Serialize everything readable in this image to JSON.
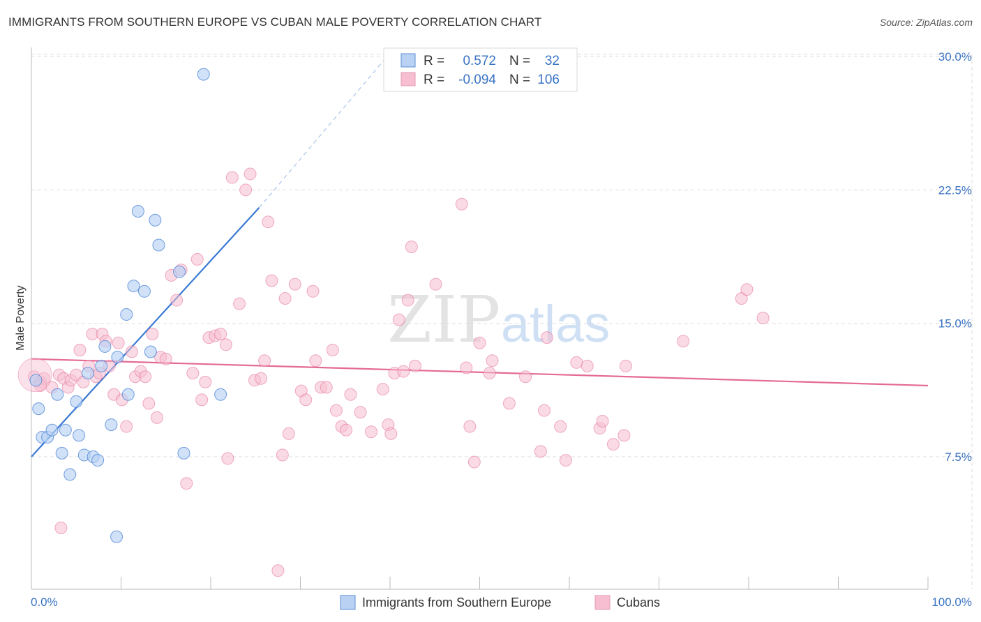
{
  "title": "IMMIGRANTS FROM SOUTHERN EUROPE VS CUBAN MALE POVERTY CORRELATION CHART",
  "source": "Source: ZipAtlas.com",
  "watermark": {
    "zip": "ZIP",
    "atlas": "atlas"
  },
  "colors": {
    "blue": "#3a7ad4",
    "blue_fill": "#b9d1f2",
    "pink": "#e46b95",
    "pink_fill": "#f6bed0",
    "axis_label": "#3b74c4",
    "grid": "#dddddd"
  },
  "legend": {
    "series1": {
      "r_label": "R = ",
      "r_value": "0.572",
      "n_label": "N = ",
      "n_value": "32"
    },
    "series2": {
      "r_label": "R = ",
      "r_value": "-0.094",
      "n_label": "N = ",
      "n_value": "106"
    }
  },
  "bottom_legend": {
    "series1": "Immigrants from Southern Europe",
    "series2": "Cubans"
  },
  "chart_data": {
    "type": "scatter",
    "title": "IMMIGRANTS FROM SOUTHERN EUROPE VS CUBAN MALE POVERTY CORRELATION CHART",
    "xlabel": "",
    "ylabel": "Male Poverty",
    "xlim": [
      0,
      100
    ],
    "ylim": [
      0,
      31
    ],
    "x_tick_labels": [
      "0.0%",
      "100.0%"
    ],
    "y_ticks": [
      7.5,
      15.0,
      22.5,
      30.0
    ],
    "y_tick_labels": [
      "7.5%",
      "15.0%",
      "22.5%",
      "30.0%"
    ],
    "grid": true,
    "series": [
      {
        "name": "Immigrants from Southern Europe",
        "r": 0.572,
        "n": 32,
        "trend": {
          "x0": 0,
          "y0": 7.5,
          "x1": 25.4,
          "y1": 21.5,
          "dash_to_x": 40,
          "dash_to_y": 30.2
        },
        "points": [
          [
            0.5,
            11.8
          ],
          [
            0.8,
            10.2
          ],
          [
            1.2,
            8.6
          ],
          [
            1.8,
            8.6
          ],
          [
            2.3,
            9.0
          ],
          [
            2.9,
            11.0
          ],
          [
            3.4,
            7.7
          ],
          [
            3.8,
            9.0
          ],
          [
            4.3,
            6.5
          ],
          [
            5.0,
            10.6
          ],
          [
            5.3,
            8.7
          ],
          [
            5.9,
            7.6
          ],
          [
            6.3,
            12.2
          ],
          [
            6.9,
            7.5
          ],
          [
            7.4,
            7.3
          ],
          [
            7.8,
            12.6
          ],
          [
            8.2,
            13.7
          ],
          [
            8.9,
            9.3
          ],
          [
            9.6,
            13.1
          ],
          [
            10.6,
            15.5
          ],
          [
            10.8,
            11.0
          ],
          [
            11.4,
            17.1
          ],
          [
            11.9,
            21.3
          ],
          [
            12.6,
            16.8
          ],
          [
            13.3,
            13.4
          ],
          [
            13.8,
            20.8
          ],
          [
            14.2,
            19.4
          ],
          [
            16.5,
            17.9
          ],
          [
            17.0,
            7.7
          ],
          [
            19.2,
            29.0
          ],
          [
            21.1,
            11.0
          ],
          [
            9.5,
            3.0
          ]
        ]
      },
      {
        "name": "Cubans",
        "r": -0.094,
        "n": 106,
        "trend": {
          "x0": 0,
          "y0": 13.0,
          "x1": 100,
          "y1": 11.5
        },
        "points": [
          [
            0.3,
            12.0
          ],
          [
            1.0,
            11.7
          ],
          [
            1.4,
            11.9
          ],
          [
            2.3,
            11.4
          ],
          [
            3.1,
            12.1
          ],
          [
            3.6,
            11.9
          ],
          [
            4.1,
            11.4
          ],
          [
            4.4,
            11.8
          ],
          [
            5.0,
            12.1
          ],
          [
            5.4,
            13.5
          ],
          [
            5.8,
            11.7
          ],
          [
            6.4,
            12.6
          ],
          [
            6.8,
            14.4
          ],
          [
            7.2,
            12.0
          ],
          [
            7.6,
            12.2
          ],
          [
            7.9,
            14.4
          ],
          [
            8.3,
            14.0
          ],
          [
            8.7,
            12.6
          ],
          [
            9.2,
            11.0
          ],
          [
            9.7,
            13.9
          ],
          [
            10.1,
            10.7
          ],
          [
            10.6,
            9.2
          ],
          [
            11.2,
            13.4
          ],
          [
            11.6,
            12.0
          ],
          [
            12.2,
            12.3
          ],
          [
            12.7,
            12.0
          ],
          [
            13.1,
            10.5
          ],
          [
            13.5,
            14.4
          ],
          [
            14.0,
            9.7
          ],
          [
            14.4,
            13.1
          ],
          [
            15.0,
            13.0
          ],
          [
            15.6,
            17.7
          ],
          [
            16.2,
            16.3
          ],
          [
            16.7,
            18.0
          ],
          [
            17.3,
            6.0
          ],
          [
            18.0,
            12.2
          ],
          [
            18.5,
            18.6
          ],
          [
            19.0,
            10.7
          ],
          [
            19.4,
            11.7
          ],
          [
            19.8,
            14.2
          ],
          [
            20.5,
            14.3
          ],
          [
            21.1,
            14.4
          ],
          [
            21.7,
            13.8
          ],
          [
            21.9,
            7.4
          ],
          [
            22.4,
            23.2
          ],
          [
            23.2,
            16.1
          ],
          [
            23.9,
            22.5
          ],
          [
            24.4,
            23.4
          ],
          [
            24.9,
            11.8
          ],
          [
            25.6,
            11.9
          ],
          [
            26.0,
            12.9
          ],
          [
            26.4,
            20.7
          ],
          [
            26.8,
            17.4
          ],
          [
            27.5,
            1.1
          ],
          [
            28.0,
            7.6
          ],
          [
            28.3,
            16.4
          ],
          [
            28.7,
            8.8
          ],
          [
            29.4,
            17.2
          ],
          [
            30.1,
            11.2
          ],
          [
            30.6,
            10.7
          ],
          [
            31.4,
            16.8
          ],
          [
            31.7,
            12.9
          ],
          [
            32.3,
            11.4
          ],
          [
            32.9,
            11.4
          ],
          [
            33.6,
            13.5
          ],
          [
            34.0,
            10.1
          ],
          [
            34.6,
            9.2
          ],
          [
            35.1,
            9.0
          ],
          [
            35.6,
            11.0
          ],
          [
            36.7,
            10.0
          ],
          [
            37.9,
            8.9
          ],
          [
            39.2,
            11.3
          ],
          [
            39.8,
            9.3
          ],
          [
            40.1,
            8.8
          ],
          [
            40.5,
            12.2
          ],
          [
            41.0,
            15.2
          ],
          [
            41.5,
            12.3
          ],
          [
            42.0,
            16.3
          ],
          [
            42.4,
            19.3
          ],
          [
            42.8,
            12.6
          ],
          [
            45.1,
            17.2
          ],
          [
            48.0,
            21.7
          ],
          [
            48.5,
            12.5
          ],
          [
            48.9,
            9.2
          ],
          [
            49.4,
            7.2
          ],
          [
            50.0,
            13.9
          ],
          [
            51.1,
            12.2
          ],
          [
            51.4,
            12.9
          ],
          [
            53.3,
            10.5
          ],
          [
            55.1,
            12.0
          ],
          [
            56.8,
            7.8
          ],
          [
            57.2,
            10.1
          ],
          [
            57.5,
            14.2
          ],
          [
            59.0,
            9.2
          ],
          [
            59.6,
            7.3
          ],
          [
            60.8,
            12.8
          ],
          [
            62.0,
            12.6
          ],
          [
            63.4,
            9.1
          ],
          [
            63.7,
            9.5
          ],
          [
            64.9,
            8.2
          ],
          [
            66.1,
            8.7
          ],
          [
            66.3,
            12.6
          ],
          [
            72.7,
            14.0
          ],
          [
            79.2,
            16.4
          ],
          [
            79.8,
            16.9
          ],
          [
            81.6,
            15.3
          ],
          [
            1.0,
            11.5
          ],
          [
            3.3,
            3.5
          ]
        ]
      }
    ]
  }
}
